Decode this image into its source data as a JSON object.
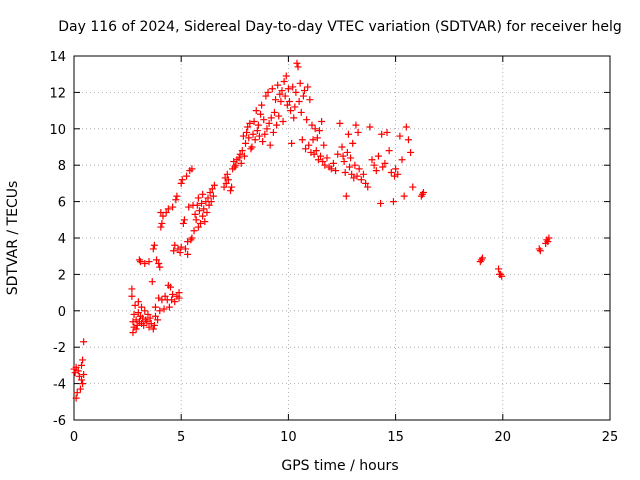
{
  "chart_data": {
    "type": "scatter",
    "title": "Day 116 of 2024, Sidereal Day-to-day VTEC variation (SDTVAR) for receiver helg",
    "xlabel": "GPS time / hours",
    "ylabel": "SDTVAR / TECUs",
    "xlim": [
      0,
      25
    ],
    "ylim": [
      -6,
      14
    ],
    "xticks": [
      0,
      5,
      10,
      15,
      20,
      25
    ],
    "yticks": [
      -6,
      -4,
      -2,
      0,
      2,
      4,
      6,
      8,
      10,
      12,
      14
    ],
    "grid": true,
    "marker": "plus",
    "color": "#ff0000",
    "series": [
      {
        "name": "SDTVAR",
        "points": [
          [
            0.0,
            -3.2
          ],
          [
            0.05,
            -3.4
          ],
          [
            0.1,
            -3.1
          ],
          [
            0.1,
            -4.8
          ],
          [
            0.15,
            -4.5
          ],
          [
            0.2,
            -3.3
          ],
          [
            0.25,
            -3.6
          ],
          [
            0.3,
            -4.3
          ],
          [
            0.35,
            -3.0
          ],
          [
            0.35,
            -3.8
          ],
          [
            0.4,
            -2.7
          ],
          [
            0.4,
            -4.0
          ],
          [
            0.45,
            -1.7
          ],
          [
            0.45,
            -3.5
          ],
          [
            2.7,
            0.8
          ],
          [
            2.7,
            1.2
          ],
          [
            2.75,
            -0.6
          ],
          [
            2.75,
            -1.2
          ],
          [
            2.8,
            -0.2
          ],
          [
            2.8,
            -0.9
          ],
          [
            2.85,
            0.3
          ],
          [
            2.9,
            -0.5
          ],
          [
            2.9,
            -1.0
          ],
          [
            2.95,
            -0.8
          ],
          [
            3.0,
            -0.1
          ],
          [
            3.0,
            0.5
          ],
          [
            3.05,
            2.8
          ],
          [
            3.05,
            -0.6
          ],
          [
            3.1,
            2.7
          ],
          [
            3.1,
            -0.3
          ],
          [
            3.15,
            0.2
          ],
          [
            3.15,
            -0.7
          ],
          [
            3.2,
            -0.4
          ],
          [
            3.25,
            -0.8
          ],
          [
            3.3,
            2.6
          ],
          [
            3.3,
            0.0
          ],
          [
            3.35,
            -0.5
          ],
          [
            3.4,
            -0.6
          ],
          [
            3.45,
            -0.2
          ],
          [
            3.5,
            2.7
          ],
          [
            3.5,
            -0.9
          ],
          [
            3.55,
            -0.4
          ],
          [
            3.6,
            -0.7
          ],
          [
            3.65,
            1.6
          ],
          [
            3.7,
            3.4
          ],
          [
            3.7,
            -1.0
          ],
          [
            3.75,
            3.6
          ],
          [
            3.75,
            -0.8
          ],
          [
            3.8,
            0.2
          ],
          [
            3.8,
            -0.3
          ],
          [
            3.85,
            2.8
          ],
          [
            3.9,
            -0.5
          ],
          [
            3.95,
            2.6
          ],
          [
            3.95,
            0.7
          ],
          [
            4.0,
            2.4
          ],
          [
            4.0,
            0.0
          ],
          [
            4.05,
            4.6
          ],
          [
            4.05,
            5.4
          ],
          [
            4.1,
            0.6
          ],
          [
            4.1,
            4.8
          ],
          [
            4.15,
            5.2
          ],
          [
            4.2,
            0.1
          ],
          [
            4.25,
            0.8
          ],
          [
            4.3,
            5.4
          ],
          [
            4.35,
            0.6
          ],
          [
            4.4,
            1.4
          ],
          [
            4.4,
            5.6
          ],
          [
            4.45,
            0.2
          ],
          [
            4.5,
            1.3
          ],
          [
            4.55,
            0.6
          ],
          [
            4.6,
            5.7
          ],
          [
            4.6,
            0.9
          ],
          [
            4.65,
            3.3
          ],
          [
            4.7,
            0.5
          ],
          [
            4.7,
            3.6
          ],
          [
            4.75,
            6.1
          ],
          [
            4.8,
            0.8
          ],
          [
            4.8,
            6.3
          ],
          [
            4.85,
            3.4
          ],
          [
            4.9,
            0.7
          ],
          [
            4.9,
            1.0
          ],
          [
            4.95,
            3.2
          ],
          [
            5.0,
            3.5
          ],
          [
            5.0,
            7.0
          ],
          [
            5.05,
            7.2
          ],
          [
            5.1,
            4.8
          ],
          [
            5.15,
            5.0
          ],
          [
            5.2,
            3.4
          ],
          [
            5.25,
            7.4
          ],
          [
            5.3,
            3.1
          ],
          [
            5.3,
            3.8
          ],
          [
            5.35,
            5.7
          ],
          [
            5.4,
            7.7
          ],
          [
            5.45,
            3.9
          ],
          [
            5.5,
            4.0
          ],
          [
            5.5,
            7.8
          ],
          [
            5.55,
            5.8
          ],
          [
            5.6,
            4.4
          ],
          [
            5.65,
            5.3
          ],
          [
            5.7,
            5.0
          ],
          [
            5.75,
            5.8
          ],
          [
            5.8,
            4.6
          ],
          [
            5.8,
            6.2
          ],
          [
            5.85,
            5.5
          ],
          [
            5.9,
            4.8
          ],
          [
            5.95,
            5.9
          ],
          [
            6.0,
            5.2
          ],
          [
            6.0,
            6.4
          ],
          [
            6.05,
            5.6
          ],
          [
            6.1,
            4.9
          ],
          [
            6.15,
            6.0
          ],
          [
            6.2,
            5.4
          ],
          [
            6.25,
            6.2
          ],
          [
            6.3,
            5.8
          ],
          [
            6.35,
            6.5
          ],
          [
            6.4,
            6.0
          ],
          [
            6.45,
            6.7
          ],
          [
            6.5,
            6.3
          ],
          [
            6.55,
            6.9
          ],
          [
            7.0,
            6.8
          ],
          [
            7.05,
            7.3
          ],
          [
            7.1,
            7.0
          ],
          [
            7.15,
            7.5
          ],
          [
            7.2,
            7.2
          ],
          [
            7.3,
            6.6
          ],
          [
            7.35,
            6.8
          ],
          [
            7.4,
            7.8
          ],
          [
            7.45,
            8.2
          ],
          [
            7.5,
            7.9
          ],
          [
            7.55,
            8.0
          ],
          [
            7.6,
            8.3
          ],
          [
            7.7,
            8.4
          ],
          [
            7.75,
            8.6
          ],
          [
            7.8,
            8.1
          ],
          [
            7.85,
            8.8
          ],
          [
            7.9,
            9.6
          ],
          [
            7.95,
            8.5
          ],
          [
            8.0,
            9.2
          ],
          [
            8.05,
            9.8
          ],
          [
            8.1,
            10.1
          ],
          [
            8.15,
            9.5
          ],
          [
            8.2,
            10.3
          ],
          [
            8.25,
            8.9
          ],
          [
            8.3,
            9.0
          ],
          [
            8.35,
            9.7
          ],
          [
            8.4,
            10.4
          ],
          [
            8.45,
            9.4
          ],
          [
            8.5,
            11.0
          ],
          [
            8.55,
            9.9
          ],
          [
            8.6,
            10.2
          ],
          [
            8.65,
            9.6
          ],
          [
            8.7,
            10.8
          ],
          [
            8.75,
            11.3
          ],
          [
            8.8,
            9.3
          ],
          [
            8.85,
            10.5
          ],
          [
            8.9,
            9.7
          ],
          [
            8.95,
            11.8
          ],
          [
            9.0,
            10.0
          ],
          [
            9.05,
            12.0
          ],
          [
            9.1,
            10.3
          ],
          [
            9.15,
            9.1
          ],
          [
            9.2,
            10.6
          ],
          [
            9.25,
            12.2
          ],
          [
            9.3,
            9.8
          ],
          [
            9.35,
            10.9
          ],
          [
            9.4,
            11.6
          ],
          [
            9.45,
            10.2
          ],
          [
            9.5,
            12.4
          ],
          [
            9.55,
            10.7
          ],
          [
            9.6,
            11.9
          ],
          [
            9.65,
            11.5
          ],
          [
            9.7,
            12.1
          ],
          [
            9.75,
            10.4
          ],
          [
            9.8,
            12.6
          ],
          [
            9.85,
            11.8
          ],
          [
            9.9,
            12.9
          ],
          [
            9.95,
            11.3
          ],
          [
            10.0,
            12.2
          ],
          [
            10.05,
            11.5
          ],
          [
            10.1,
            11.0
          ],
          [
            10.15,
            9.2
          ],
          [
            10.2,
            12.3
          ],
          [
            10.25,
            10.6
          ],
          [
            10.3,
            11.2
          ],
          [
            10.35,
            12.0
          ],
          [
            10.4,
            13.6
          ],
          [
            10.45,
            13.4
          ],
          [
            10.5,
            11.5
          ],
          [
            10.55,
            12.5
          ],
          [
            10.6,
            10.9
          ],
          [
            10.65,
            9.4
          ],
          [
            10.7,
            11.8
          ],
          [
            10.75,
            12.1
          ],
          [
            10.8,
            8.9
          ],
          [
            10.85,
            10.5
          ],
          [
            10.9,
            12.3
          ],
          [
            10.95,
            9.1
          ],
          [
            11.0,
            11.6
          ],
          [
            11.05,
            8.7
          ],
          [
            11.1,
            10.2
          ],
          [
            11.15,
            9.4
          ],
          [
            11.2,
            8.6
          ],
          [
            11.25,
            10.0
          ],
          [
            11.3,
            8.8
          ],
          [
            11.35,
            9.5
          ],
          [
            11.4,
            8.3
          ],
          [
            11.45,
            9.9
          ],
          [
            11.5,
            8.5
          ],
          [
            11.55,
            10.4
          ],
          [
            11.6,
            8.2
          ],
          [
            11.65,
            9.1
          ],
          [
            11.7,
            8.0
          ],
          [
            11.8,
            8.4
          ],
          [
            11.9,
            7.9
          ],
          [
            12.0,
            7.8
          ],
          [
            12.1,
            8.1
          ],
          [
            12.2,
            7.7
          ],
          [
            12.3,
            8.6
          ],
          [
            12.4,
            10.3
          ],
          [
            12.5,
            9.0
          ],
          [
            12.55,
            8.5
          ],
          [
            12.6,
            8.2
          ],
          [
            12.65,
            7.6
          ],
          [
            12.7,
            6.3
          ],
          [
            12.75,
            8.7
          ],
          [
            12.8,
            9.7
          ],
          [
            12.85,
            7.9
          ],
          [
            12.9,
            8.4
          ],
          [
            12.95,
            7.5
          ],
          [
            13.0,
            9.2
          ],
          [
            13.05,
            7.3
          ],
          [
            13.1,
            8.0
          ],
          [
            13.15,
            10.2
          ],
          [
            13.2,
            7.4
          ],
          [
            13.25,
            9.8
          ],
          [
            13.3,
            7.8
          ],
          [
            13.4,
            7.2
          ],
          [
            13.5,
            7.5
          ],
          [
            13.6,
            7.0
          ],
          [
            13.7,
            6.8
          ],
          [
            13.8,
            10.1
          ],
          [
            13.9,
            8.3
          ],
          [
            14.0,
            8.0
          ],
          [
            14.1,
            7.7
          ],
          [
            14.2,
            8.5
          ],
          [
            14.3,
            5.9
          ],
          [
            14.35,
            9.7
          ],
          [
            14.4,
            7.9
          ],
          [
            14.5,
            8.1
          ],
          [
            14.6,
            9.8
          ],
          [
            14.7,
            8.8
          ],
          [
            14.8,
            7.6
          ],
          [
            14.9,
            6.0
          ],
          [
            14.95,
            7.4
          ],
          [
            15.0,
            7.8
          ],
          [
            15.1,
            7.5
          ],
          [
            15.2,
            9.6
          ],
          [
            15.3,
            8.3
          ],
          [
            15.4,
            6.3
          ],
          [
            15.5,
            10.1
          ],
          [
            15.6,
            9.4
          ],
          [
            15.7,
            8.7
          ],
          [
            15.8,
            6.8
          ],
          [
            16.2,
            6.3
          ],
          [
            16.25,
            6.4
          ],
          [
            16.3,
            6.5
          ],
          [
            18.95,
            2.7
          ],
          [
            19.0,
            2.8
          ],
          [
            19.05,
            2.9
          ],
          [
            19.8,
            2.3
          ],
          [
            19.85,
            2.0
          ],
          [
            19.9,
            2.0
          ],
          [
            19.95,
            1.9
          ],
          [
            21.7,
            3.4
          ],
          [
            21.75,
            3.3
          ],
          [
            22.0,
            3.7
          ],
          [
            22.05,
            3.9
          ],
          [
            22.1,
            3.8
          ],
          [
            22.15,
            4.0
          ]
        ]
      }
    ]
  }
}
